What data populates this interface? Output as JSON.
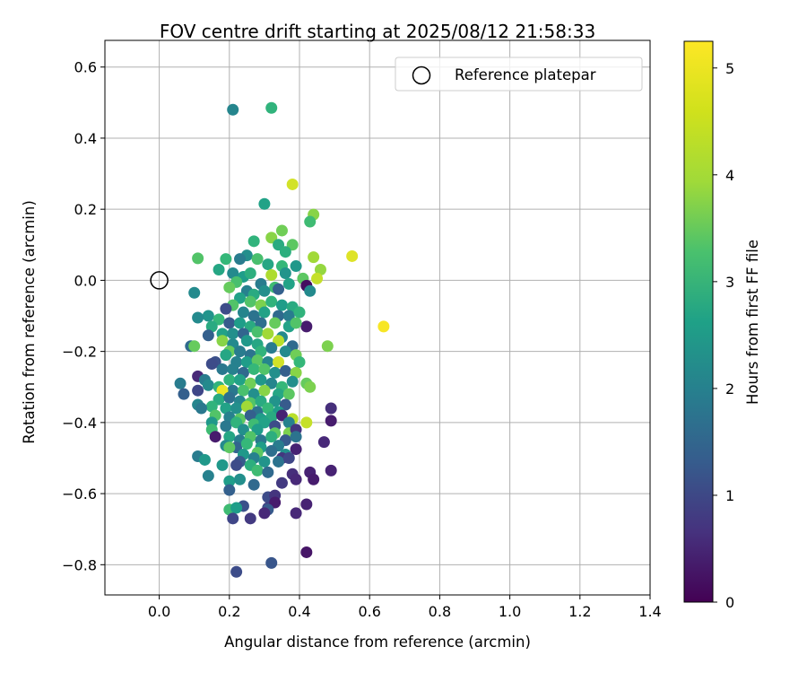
{
  "chart_data": {
    "type": "scatter",
    "title": "FOV centre drift starting at 2025/08/12 21:58:33",
    "xlabel": "Angular distance from reference (arcmin)",
    "ylabel": "Rotation from reference (arcmin)",
    "xlim": [
      -0.155,
      1.4
    ],
    "ylim": [
      -0.885,
      0.675
    ],
    "xticks": [
      0.0,
      0.2,
      0.4,
      0.6,
      0.8,
      1.0,
      1.2,
      1.4
    ],
    "xtick_labels": [
      "0.0",
      "0.2",
      "0.4",
      "0.6",
      "0.8",
      "1.0",
      "1.2",
      "1.4"
    ],
    "yticks": [
      -0.8,
      -0.6,
      -0.4,
      -0.2,
      0.0,
      0.2,
      0.4,
      0.6
    ],
    "ytick_labels": [
      "−0.8",
      "−0.6",
      "−0.4",
      "−0.2",
      "0.0",
      "0.2",
      "0.4",
      "0.6"
    ],
    "grid": true,
    "legend": {
      "placement": "top-right",
      "entries": [
        {
          "label": "Reference platepar",
          "marker": "open-circle",
          "x": 0.0,
          "y": 0.0
        }
      ]
    },
    "colorbar": {
      "label": "Hours from first FF file",
      "range": [
        0,
        5.25
      ],
      "ticks": [
        0,
        1,
        2,
        3,
        4,
        5
      ],
      "tick_labels": [
        "0",
        "1",
        "2",
        "3",
        "4",
        "5"
      ],
      "colormap": "viridis"
    },
    "point_fields": [
      "x_arcmin",
      "rotation_arcmin",
      "hours"
    ],
    "points": [
      [
        0.21,
        0.48,
        2.4
      ],
      [
        0.32,
        0.485,
        3.4
      ],
      [
        0.38,
        0.27,
        4.9
      ],
      [
        0.3,
        0.215,
        3.0
      ],
      [
        0.44,
        0.185,
        4.3
      ],
      [
        0.43,
        0.165,
        3.6
      ],
      [
        0.35,
        0.14,
        4.1
      ],
      [
        0.32,
        0.12,
        4.3
      ],
      [
        0.27,
        0.11,
        3.4
      ],
      [
        0.34,
        0.1,
        3.2
      ],
      [
        0.38,
        0.1,
        3.9
      ],
      [
        0.36,
        0.08,
        3.3
      ],
      [
        0.25,
        0.07,
        2.6
      ],
      [
        0.23,
        0.06,
        2.2
      ],
      [
        0.28,
        0.06,
        3.7
      ],
      [
        0.44,
        0.065,
        4.5
      ],
      [
        0.55,
        0.068,
        5.0
      ],
      [
        0.11,
        0.062,
        3.8
      ],
      [
        0.19,
        0.06,
        3.5
      ],
      [
        0.31,
        0.045,
        3.1
      ],
      [
        0.35,
        0.04,
        3.5
      ],
      [
        0.39,
        0.04,
        2.8
      ],
      [
        0.46,
        0.03,
        4.4
      ],
      [
        0.17,
        0.03,
        3.1
      ],
      [
        0.21,
        0.02,
        2.5
      ],
      [
        0.24,
        0.01,
        2.9
      ],
      [
        0.26,
        0.02,
        3.3
      ],
      [
        0.32,
        0.015,
        4.6
      ],
      [
        0.36,
        0.02,
        2.7
      ],
      [
        0.41,
        0.005,
        3.9
      ],
      [
        0.45,
        0.005,
        4.8
      ],
      [
        0.22,
        -0.005,
        3.7
      ],
      [
        0.29,
        -0.01,
        2.2
      ],
      [
        0.33,
        -0.02,
        3.6
      ],
      [
        0.37,
        -0.01,
        3.0
      ],
      [
        0.42,
        -0.015,
        0.2
      ],
      [
        0.2,
        -0.02,
        4.0
      ],
      [
        0.25,
        -0.03,
        2.3
      ],
      [
        0.27,
        -0.04,
        3.2
      ],
      [
        0.3,
        -0.03,
        2.6
      ],
      [
        0.34,
        -0.025,
        1.6
      ],
      [
        0.43,
        -0.03,
        2.5
      ],
      [
        0.1,
        -0.035,
        2.5
      ],
      [
        0.23,
        -0.05,
        3.0
      ],
      [
        0.26,
        -0.06,
        3.8
      ],
      [
        0.29,
        -0.07,
        4.2
      ],
      [
        0.32,
        -0.06,
        3.4
      ],
      [
        0.35,
        -0.07,
        2.9
      ],
      [
        0.38,
        -0.075,
        3.2
      ],
      [
        0.21,
        -0.07,
        3.8
      ],
      [
        0.19,
        -0.08,
        1.2
      ],
      [
        0.24,
        -0.09,
        2.4
      ],
      [
        0.27,
        -0.1,
        2.0
      ],
      [
        0.3,
        -0.09,
        3.0
      ],
      [
        0.34,
        -0.1,
        1.8
      ],
      [
        0.37,
        -0.1,
        2.2
      ],
      [
        0.4,
        -0.09,
        3.4
      ],
      [
        0.14,
        -0.1,
        2.7
      ],
      [
        0.11,
        -0.105,
        2.5
      ],
      [
        0.17,
        -0.11,
        3.5
      ],
      [
        0.2,
        -0.12,
        1.5
      ],
      [
        0.23,
        -0.12,
        2.9
      ],
      [
        0.26,
        -0.13,
        3.2
      ],
      [
        0.29,
        -0.12,
        1.9
      ],
      [
        0.33,
        -0.12,
        4.0
      ],
      [
        0.37,
        -0.13,
        3.0
      ],
      [
        0.42,
        -0.13,
        0.4
      ],
      [
        0.39,
        -0.12,
        3.8
      ],
      [
        0.15,
        -0.13,
        3.2
      ],
      [
        0.18,
        -0.15,
        3.0
      ],
      [
        0.21,
        -0.15,
        2.6
      ],
      [
        0.24,
        -0.15,
        1.7
      ],
      [
        0.28,
        -0.145,
        3.7
      ],
      [
        0.31,
        -0.15,
        4.5
      ],
      [
        0.35,
        -0.16,
        2.5
      ],
      [
        0.14,
        -0.155,
        1.6
      ],
      [
        0.64,
        -0.13,
        5.2
      ],
      [
        0.18,
        -0.17,
        4.3
      ],
      [
        0.21,
        -0.18,
        2.5
      ],
      [
        0.25,
        -0.17,
        2.8
      ],
      [
        0.28,
        -0.18,
        3.1
      ],
      [
        0.34,
        -0.17,
        4.7
      ],
      [
        0.38,
        -0.185,
        1.8
      ],
      [
        0.48,
        -0.185,
        4.2
      ],
      [
        0.09,
        -0.185,
        1.8
      ],
      [
        0.1,
        -0.185,
        4.0
      ],
      [
        0.2,
        -0.2,
        4.0
      ],
      [
        0.23,
        -0.2,
        2.2
      ],
      [
        0.26,
        -0.21,
        2.0
      ],
      [
        0.29,
        -0.2,
        3.4
      ],
      [
        0.32,
        -0.19,
        2.2
      ],
      [
        0.36,
        -0.2,
        2.5
      ],
      [
        0.39,
        -0.21,
        4.1
      ],
      [
        0.16,
        -0.23,
        1.3
      ],
      [
        0.19,
        -0.21,
        3.1
      ],
      [
        0.22,
        -0.23,
        2.3
      ],
      [
        0.25,
        -0.23,
        2.9
      ],
      [
        0.28,
        -0.225,
        3.9
      ],
      [
        0.31,
        -0.23,
        2.4
      ],
      [
        0.34,
        -0.23,
        4.9
      ],
      [
        0.4,
        -0.23,
        3.5
      ],
      [
        0.15,
        -0.235,
        1.2
      ],
      [
        0.18,
        -0.25,
        2.1
      ],
      [
        0.21,
        -0.25,
        2.3
      ],
      [
        0.24,
        -0.26,
        1.8
      ],
      [
        0.27,
        -0.25,
        3.5
      ],
      [
        0.3,
        -0.25,
        3.8
      ],
      [
        0.33,
        -0.26,
        2.6
      ],
      [
        0.36,
        -0.255,
        1.6
      ],
      [
        0.39,
        -0.26,
        4.3
      ],
      [
        0.11,
        -0.27,
        0.6
      ],
      [
        0.13,
        -0.28,
        2.2
      ],
      [
        0.2,
        -0.28,
        3.4
      ],
      [
        0.23,
        -0.28,
        3.0
      ],
      [
        0.26,
        -0.29,
        4.1
      ],
      [
        0.29,
        -0.28,
        2.8
      ],
      [
        0.32,
        -0.29,
        2.4
      ],
      [
        0.35,
        -0.3,
        3.5
      ],
      [
        0.38,
        -0.285,
        2.6
      ],
      [
        0.42,
        -0.29,
        4.0
      ],
      [
        0.06,
        -0.29,
        2.2
      ],
      [
        0.14,
        -0.295,
        2.5
      ],
      [
        0.17,
        -0.3,
        3.4
      ],
      [
        0.21,
        -0.31,
        2.1
      ],
      [
        0.18,
        -0.31,
        5.1
      ],
      [
        0.24,
        -0.31,
        3.7
      ],
      [
        0.27,
        -0.32,
        2.6
      ],
      [
        0.3,
        -0.31,
        4.3
      ],
      [
        0.34,
        -0.32,
        3.1
      ],
      [
        0.37,
        -0.32,
        3.9
      ],
      [
        0.43,
        -0.3,
        4.2
      ],
      [
        0.07,
        -0.32,
        1.6
      ],
      [
        0.11,
        -0.31,
        1.1
      ],
      [
        0.17,
        -0.335,
        3.2
      ],
      [
        0.2,
        -0.33,
        1.9
      ],
      [
        0.23,
        -0.34,
        2.4
      ],
      [
        0.26,
        -0.345,
        3.8
      ],
      [
        0.29,
        -0.34,
        3.2
      ],
      [
        0.33,
        -0.34,
        2.7
      ],
      [
        0.36,
        -0.35,
        1.5
      ],
      [
        0.15,
        -0.355,
        3.4
      ],
      [
        0.11,
        -0.35,
        2.4
      ],
      [
        0.12,
        -0.36,
        2.1
      ],
      [
        0.19,
        -0.36,
        3.0
      ],
      [
        0.22,
        -0.36,
        2.6
      ],
      [
        0.25,
        -0.355,
        4.5
      ],
      [
        0.28,
        -0.37,
        2.0
      ],
      [
        0.31,
        -0.36,
        3.5
      ],
      [
        0.34,
        -0.37,
        2.9
      ],
      [
        0.49,
        -0.36,
        0.7
      ],
      [
        0.16,
        -0.38,
        3.8
      ],
      [
        0.2,
        -0.385,
        2.3
      ],
      [
        0.23,
        -0.39,
        3.9
      ],
      [
        0.26,
        -0.38,
        1.6
      ],
      [
        0.29,
        -0.39,
        2.9
      ],
      [
        0.32,
        -0.385,
        3.2
      ],
      [
        0.35,
        -0.38,
        0.5
      ],
      [
        0.38,
        -0.39,
        4.7
      ],
      [
        0.15,
        -0.4,
        2.8
      ],
      [
        0.19,
        -0.41,
        2.1
      ],
      [
        0.22,
        -0.4,
        3.4
      ],
      [
        0.27,
        -0.405,
        3.6
      ],
      [
        0.3,
        -0.4,
        3.0
      ],
      [
        0.33,
        -0.41,
        1.2
      ],
      [
        0.37,
        -0.4,
        2.3
      ],
      [
        0.42,
        -0.4,
        4.8
      ],
      [
        0.49,
        -0.395,
        0.4
      ],
      [
        0.15,
        -0.42,
        3.6
      ],
      [
        0.24,
        -0.42,
        2.6
      ],
      [
        0.28,
        -0.42,
        2.9
      ],
      [
        0.33,
        -0.43,
        3.9
      ],
      [
        0.37,
        -0.43,
        4.2
      ],
      [
        0.39,
        -0.42,
        0.8
      ],
      [
        0.16,
        -0.44,
        0.4
      ],
      [
        0.2,
        -0.44,
        3.1
      ],
      [
        0.23,
        -0.45,
        2.2
      ],
      [
        0.26,
        -0.44,
        3.8
      ],
      [
        0.29,
        -0.45,
        2.1
      ],
      [
        0.32,
        -0.44,
        3.3
      ],
      [
        0.36,
        -0.45,
        1.5
      ],
      [
        0.39,
        -0.44,
        2.0
      ],
      [
        0.19,
        -0.465,
        2.5
      ],
      [
        0.22,
        -0.47,
        1.7
      ],
      [
        0.25,
        -0.46,
        3.5
      ],
      [
        0.29,
        -0.47,
        2.9
      ],
      [
        0.34,
        -0.465,
        2.2
      ],
      [
        0.47,
        -0.455,
        0.6
      ],
      [
        0.2,
        -0.47,
        3.9
      ],
      [
        0.24,
        -0.49,
        2.8
      ],
      [
        0.28,
        -0.485,
        3.9
      ],
      [
        0.32,
        -0.48,
        1.9
      ],
      [
        0.36,
        -0.49,
        2.6
      ],
      [
        0.39,
        -0.475,
        0.5
      ],
      [
        0.27,
        -0.5,
        2.3
      ],
      [
        0.35,
        -0.5,
        0.8
      ],
      [
        0.11,
        -0.495,
        2.2
      ],
      [
        0.13,
        -0.505,
        2.8
      ],
      [
        0.23,
        -0.51,
        1.5
      ],
      [
        0.26,
        -0.52,
        3.3
      ],
      [
        0.3,
        -0.51,
        2.7
      ],
      [
        0.34,
        -0.51,
        2.0
      ],
      [
        0.37,
        -0.5,
        1.1
      ],
      [
        0.18,
        -0.52,
        2.8
      ],
      [
        0.22,
        -0.52,
        1.2
      ],
      [
        0.28,
        -0.535,
        3.6
      ],
      [
        0.31,
        -0.54,
        1.8
      ],
      [
        0.38,
        -0.545,
        0.7
      ],
      [
        0.43,
        -0.54,
        0.5
      ],
      [
        0.14,
        -0.55,
        2.3
      ],
      [
        0.39,
        -0.56,
        0.6
      ],
      [
        0.44,
        -0.56,
        0.4
      ],
      [
        0.49,
        -0.535,
        0.5
      ],
      [
        0.2,
        -0.565,
        2.9
      ],
      [
        0.23,
        -0.56,
        2.6
      ],
      [
        0.27,
        -0.575,
        1.8
      ],
      [
        0.35,
        -0.57,
        0.9
      ],
      [
        0.2,
        -0.59,
        1.6
      ],
      [
        0.31,
        -0.61,
        1.2
      ],
      [
        0.33,
        -0.605,
        0.8
      ],
      [
        0.24,
        -0.635,
        1.3
      ],
      [
        0.31,
        -0.64,
        1.0
      ],
      [
        0.33,
        -0.625,
        0.4
      ],
      [
        0.42,
        -0.63,
        0.5
      ],
      [
        0.2,
        -0.645,
        3.6
      ],
      [
        0.22,
        -0.64,
        2.9
      ],
      [
        0.31,
        -0.645,
        1.5
      ],
      [
        0.3,
        -0.655,
        0.6
      ],
      [
        0.39,
        -0.655,
        0.6
      ],
      [
        0.21,
        -0.67,
        1.1
      ],
      [
        0.26,
        -0.67,
        0.9
      ],
      [
        0.42,
        -0.765,
        0.3
      ],
      [
        0.32,
        -0.795,
        1.4
      ],
      [
        0.22,
        -0.82,
        1.2
      ]
    ]
  }
}
